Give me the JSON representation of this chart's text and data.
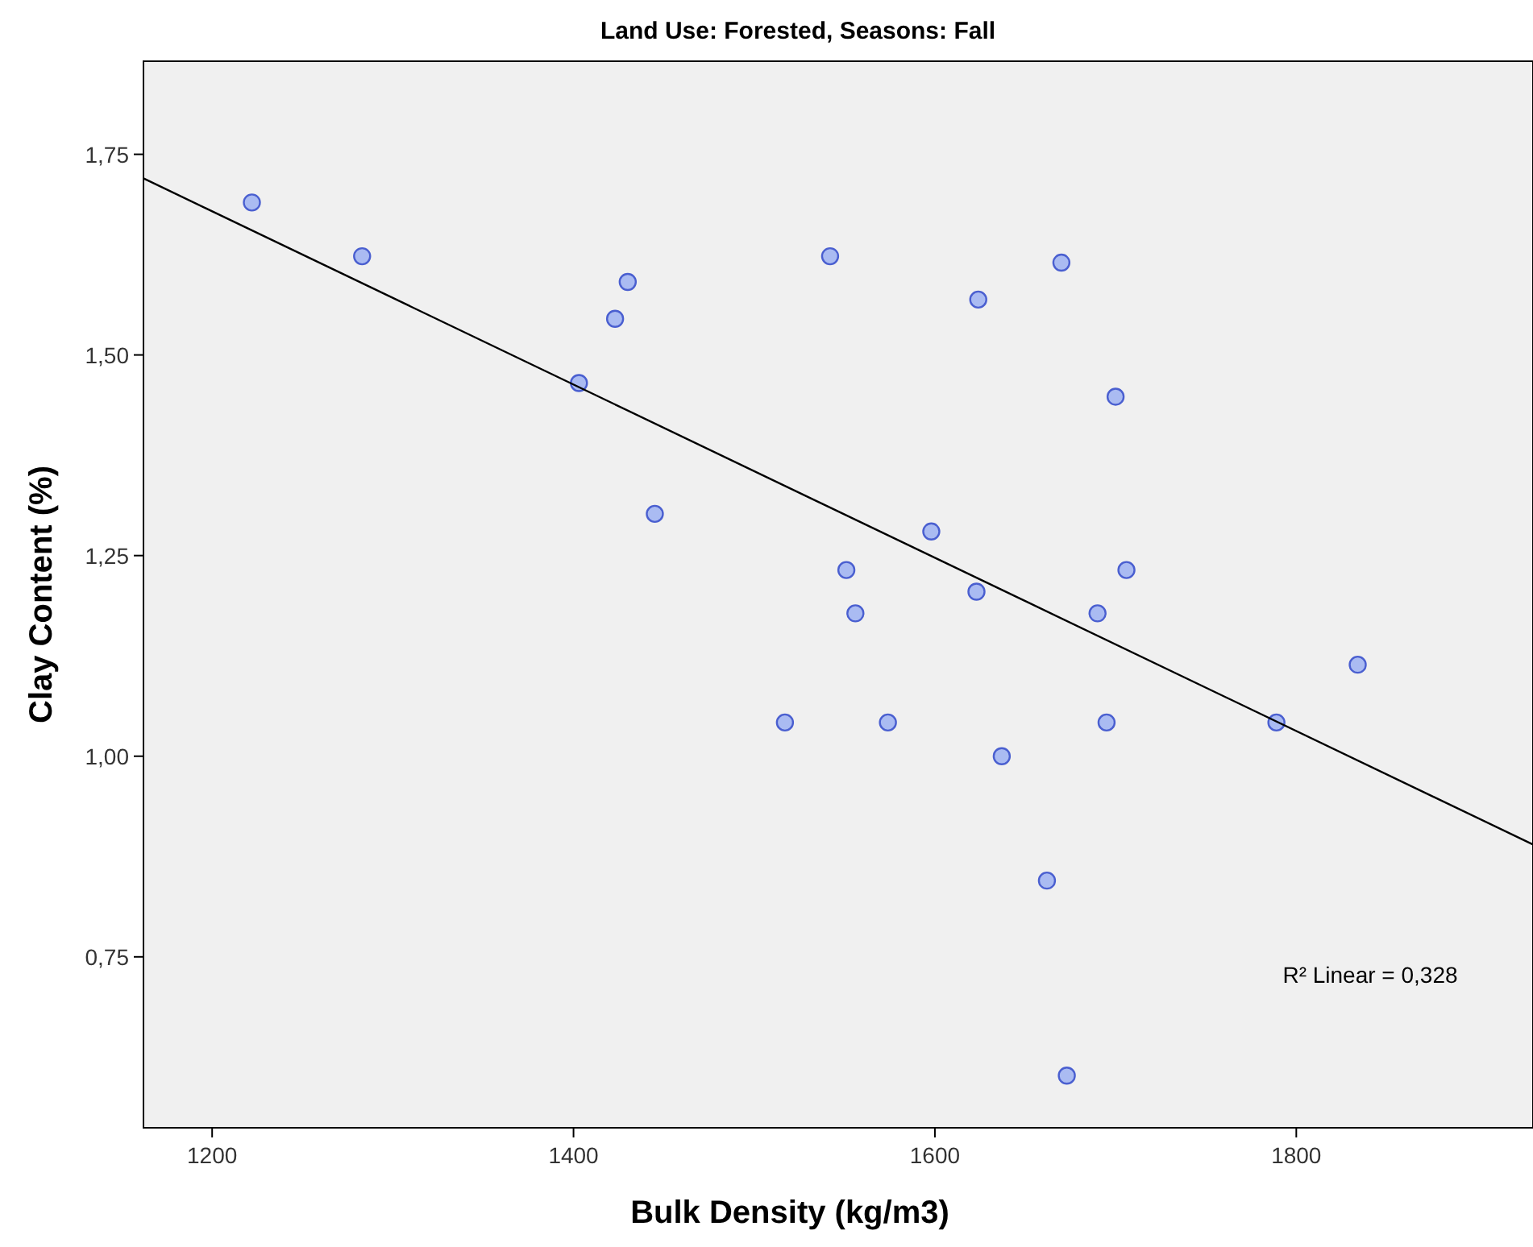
{
  "chart_data": {
    "type": "scatter",
    "title": "Land Use: Forested, Seasons: Fall",
    "xlabel": "Bulk Density (kg/m3)",
    "ylabel": "Clay Content (%)",
    "annotations": [
      "R² Linear = 0,328"
    ],
    "xlim": [
      1162,
      1931
    ],
    "ylim": [
      0.537,
      1.866
    ],
    "xticks": [
      1200,
      1400,
      1600,
      1800
    ],
    "yticks": [
      {
        "value": 0.75,
        "label": "0,75"
      },
      {
        "value": 1.0,
        "label": "1,00"
      },
      {
        "value": 1.25,
        "label": "1,25"
      },
      {
        "value": 1.5,
        "label": "1,50"
      },
      {
        "value": 1.75,
        "label": "1,75"
      }
    ],
    "grid": false,
    "series": [
      {
        "marker": "circle",
        "color": "#aabbf2",
        "x": [
          1222,
          1283,
          1430,
          1423,
          1403,
          1445,
          1542,
          1624,
          1670,
          1700,
          1598,
          1551,
          1556,
          1623,
          1706,
          1690,
          1517,
          1574,
          1637,
          1695,
          1789,
          1834,
          1662,
          1673
        ],
        "values": [
          1.69,
          1.623,
          1.591,
          1.545,
          1.465,
          1.302,
          1.623,
          1.569,
          1.615,
          1.448,
          1.28,
          1.232,
          1.178,
          1.205,
          1.232,
          1.178,
          1.042,
          1.042,
          1.0,
          1.042,
          1.042,
          1.114,
          0.845,
          0.602
        ]
      },
      {
        "type": "line",
        "color": "#000000",
        "x": [
          1162,
          1931
        ],
        "values": [
          1.72,
          0.89
        ]
      }
    ]
  }
}
